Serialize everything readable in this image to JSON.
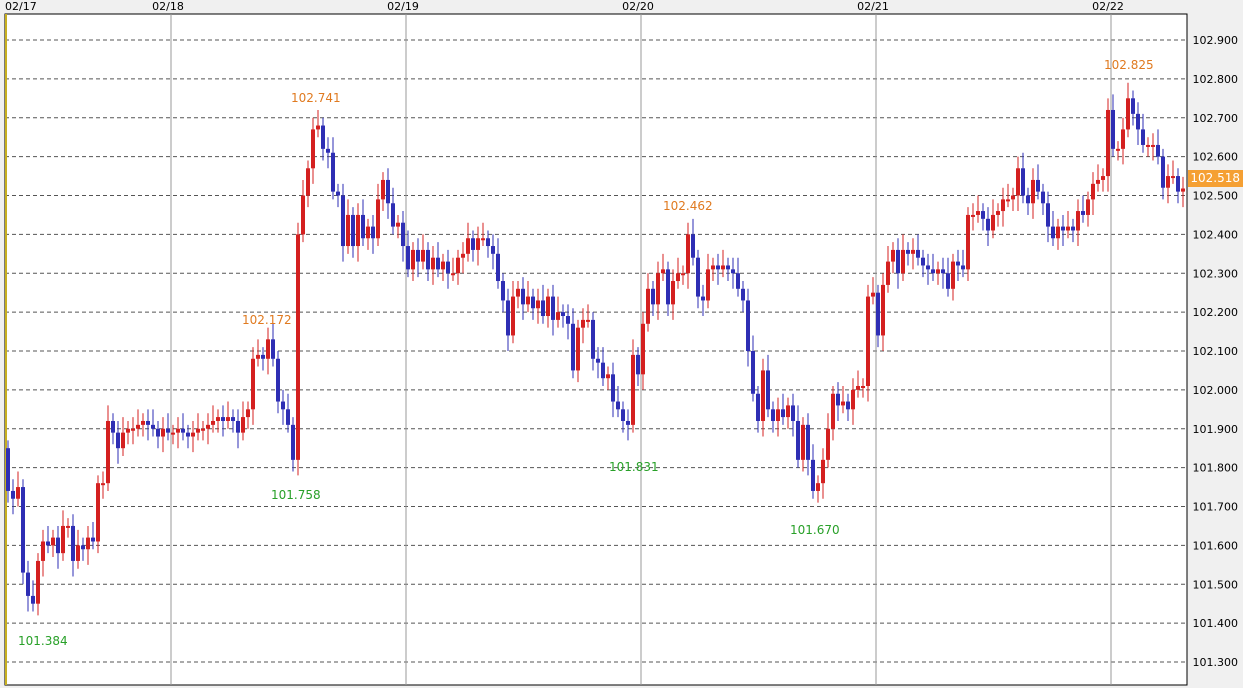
{
  "chart_data": {
    "type": "candlestick",
    "title": "",
    "xlabel": "",
    "ylabel": "",
    "ylim": [
      101.25,
      102.97
    ],
    "grid": true,
    "date_ticks": [
      "02/17",
      "02/18",
      "02/19",
      "02/20",
      "02/21",
      "02/22"
    ],
    "date_tick_candle_index": [
      0,
      33,
      80,
      127,
      174,
      221
    ],
    "y_ticks": [
      "101.300",
      "101.400",
      "101.500",
      "101.600",
      "101.700",
      "101.800",
      "101.900",
      "102.000",
      "102.100",
      "102.200",
      "102.300",
      "102.400",
      "102.500",
      "102.600",
      "102.700",
      "102.800",
      "102.900"
    ],
    "first_open": 101.85,
    "closes": [
      101.74,
      101.72,
      101.75,
      101.53,
      101.47,
      101.45,
      101.56,
      101.61,
      101.6,
      101.62,
      101.58,
      101.65,
      101.65,
      101.56,
      101.6,
      101.59,
      101.62,
      101.61,
      101.76,
      101.76,
      101.92,
      101.89,
      101.85,
      101.89,
      101.9,
      101.9,
      101.91,
      101.92,
      101.91,
      101.9,
      101.88,
      101.9,
      101.89,
      101.89,
      101.9,
      101.89,
      101.88,
      101.89,
      101.9,
      101.9,
      101.91,
      101.92,
      101.93,
      101.92,
      101.93,
      101.92,
      101.89,
      101.93,
      101.95,
      102.08,
      102.09,
      102.08,
      102.13,
      102.08,
      101.97,
      101.95,
      101.91,
      101.82,
      102.4,
      102.5,
      102.57,
      102.67,
      102.68,
      102.62,
      102.61,
      102.51,
      102.5,
      102.37,
      102.45,
      102.37,
      102.45,
      102.39,
      102.42,
      102.39,
      102.49,
      102.54,
      102.48,
      102.42,
      102.43,
      102.37,
      102.31,
      102.36,
      102.33,
      102.36,
      102.31,
      102.34,
      102.31,
      102.33,
      102.3,
      102.3,
      102.34,
      102.35,
      102.39,
      102.36,
      102.39,
      102.39,
      102.37,
      102.35,
      102.28,
      102.23,
      102.14,
      102.24,
      102.26,
      102.22,
      102.24,
      102.21,
      102.23,
      102.19,
      102.24,
      102.18,
      102.2,
      102.19,
      102.17,
      102.05,
      102.16,
      102.18,
      102.18,
      102.08,
      102.07,
      102.03,
      102.04,
      101.97,
      101.95,
      101.92,
      101.91,
      102.09,
      102.04,
      102.17,
      102.26,
      102.22,
      102.3,
      102.31,
      102.22,
      102.28,
      102.3,
      102.3,
      102.4,
      102.34,
      102.24,
      102.23,
      102.31,
      102.32,
      102.31,
      102.32,
      102.31,
      102.3,
      102.26,
      102.23,
      102.1,
      101.99,
      101.92,
      102.05,
      101.95,
      101.92,
      101.95,
      101.93,
      101.96,
      101.92,
      101.82,
      101.91,
      101.82,
      101.74,
      101.76,
      101.82,
      101.9,
      101.99,
      101.96,
      101.97,
      101.95,
      102.0,
      102.01,
      102.01,
      102.24,
      102.25,
      102.14,
      102.27,
      102.33,
      102.36,
      102.3,
      102.36,
      102.35,
      102.36,
      102.34,
      102.32,
      102.31,
      102.3,
      102.31,
      102.3,
      102.26,
      102.33,
      102.32,
      102.31,
      102.45,
      102.45,
      102.46,
      102.44,
      102.41,
      102.45,
      102.46,
      102.49,
      102.49,
      102.5,
      102.57,
      102.5,
      102.48,
      102.54,
      102.51,
      102.48,
      102.42,
      102.39,
      102.42,
      102.41,
      102.42,
      102.41,
      102.46,
      102.45,
      102.49,
      102.53,
      102.54,
      102.55,
      102.72,
      102.62,
      102.62,
      102.67,
      102.75,
      102.71,
      102.67,
      102.63,
      102.63,
      102.63,
      102.6,
      102.52,
      102.55,
      102.55,
      102.51,
      102.518
    ],
    "annotations": [
      {
        "kind": "low",
        "value": "101.384"
      },
      {
        "kind": "high",
        "value": "102.172"
      },
      {
        "kind": "low",
        "value": "101.758"
      },
      {
        "kind": "high",
        "value": "102.741"
      },
      {
        "kind": "high",
        "value": "102.462"
      },
      {
        "kind": "low",
        "value": "101.831"
      },
      {
        "kind": "low",
        "value": "101.670"
      },
      {
        "kind": "high",
        "value": "102.825"
      }
    ],
    "current_price": "102.518",
    "colors": {
      "up": "#d42020",
      "down": "#2e2eb4",
      "high_label": "#e07a20",
      "low_label": "#28a028",
      "price_tag": "#f5a033"
    }
  }
}
